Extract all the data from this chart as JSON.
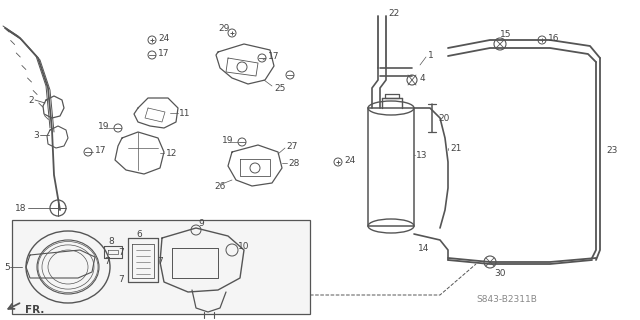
{
  "bg_color": "#ffffff",
  "line_color": "#555555",
  "label_color": "#444444",
  "watermark": "S843-B2311B",
  "fr_label": "FR.",
  "fig_width": 6.4,
  "fig_height": 3.2,
  "dpi": 100
}
